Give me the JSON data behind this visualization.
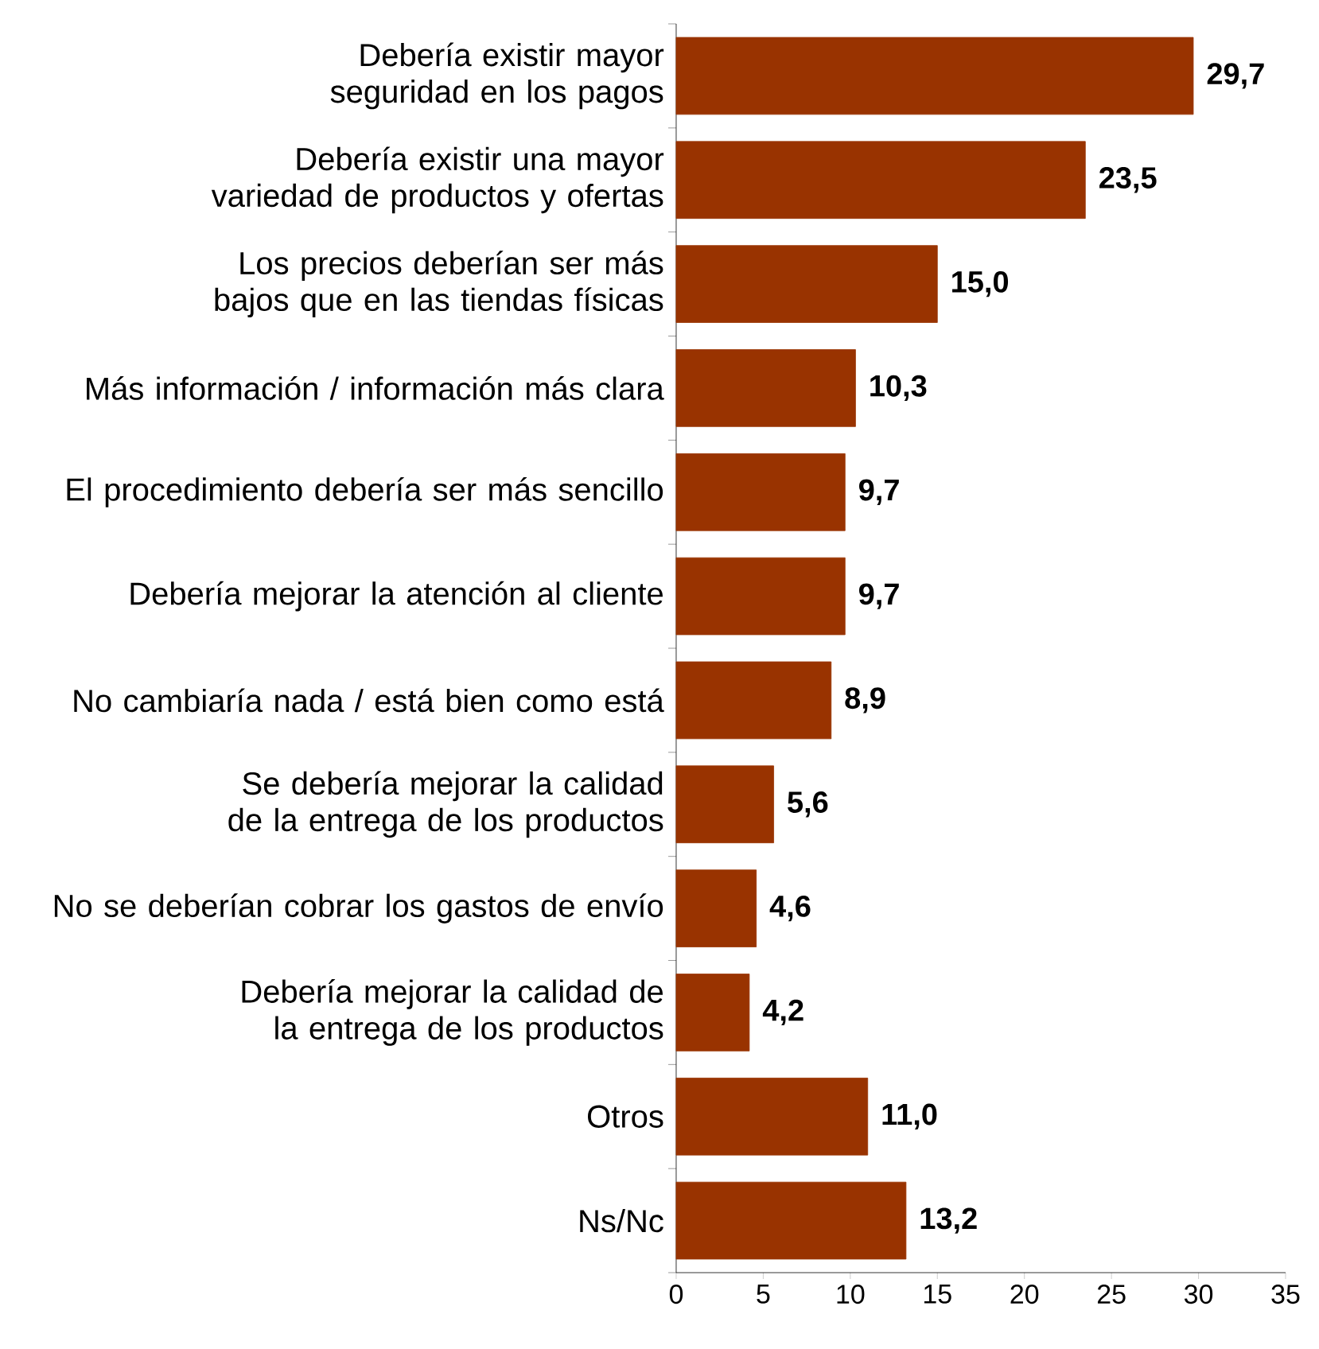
{
  "chart_data": {
    "type": "bar",
    "orientation": "horizontal",
    "categories": [
      "Debería existir mayor seguridad en los pagos",
      "Debería existir una mayor variedad de productos y ofertas",
      "Los precios deberían ser más bajos que en las tiendas físicas",
      "Más información / información más clara",
      "El procedimiento debería ser más sencillo",
      "Debería mejorar la atención al cliente",
      "No cambiaría nada / está bien como está",
      "Se debería mejorar la calidad de la entrega de los productos",
      "No se deberían cobrar los gastos de envío",
      "Debería mejorar la calidad de la entrega de los productos",
      "Otros",
      "Ns/Nc"
    ],
    "values": [
      29.7,
      23.5,
      15.0,
      10.3,
      9.7,
      9.7,
      8.9,
      5.6,
      4.6,
      4.2,
      11.0,
      13.2
    ],
    "value_labels": [
      "29,7",
      "23,5",
      "15,0",
      "10,3",
      "9,7",
      "9,7",
      "8,9",
      "5,6",
      "4,6",
      "4,2",
      "11,0",
      "13,2"
    ],
    "color": "#993300",
    "xlim": [
      0,
      35
    ],
    "xticks": [
      0,
      5,
      10,
      15,
      20,
      25,
      30,
      35
    ]
  }
}
